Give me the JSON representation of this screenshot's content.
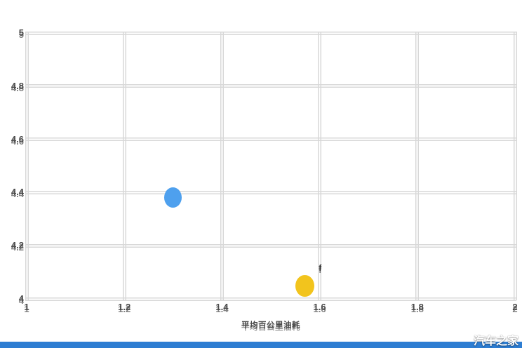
{
  "chart_data": {
    "type": "scatter",
    "xlabel": "平均百公里油耗",
    "ylabel": "",
    "xlim": [
      1,
      2
    ],
    "ylim": [
      4,
      5
    ],
    "x_ticks": [
      {
        "value": 1,
        "label": "1"
      },
      {
        "value": 1.2,
        "label": "1.2"
      },
      {
        "value": 1.4,
        "label": "1.4"
      },
      {
        "value": 1.6,
        "label": "1.6"
      },
      {
        "value": 1.8,
        "label": "1.8"
      },
      {
        "value": 2,
        "label": "2"
      }
    ],
    "y_ticks": [
      {
        "value": 5,
        "label": "5"
      },
      {
        "value": 4.8,
        "label": "4.8"
      },
      {
        "value": 4.6,
        "label": "4.6"
      },
      {
        "value": 4.4,
        "label": "4.4"
      },
      {
        "value": 4.2,
        "label": "4.2"
      },
      {
        "value": 4,
        "label": "4"
      }
    ],
    "grid": true,
    "legend": "none",
    "points": [
      {
        "name": "blue-point",
        "x": 1.3,
        "y": 4.38,
        "color": "#4ea0ee",
        "diameter": 25
      },
      {
        "name": "yellow-point",
        "x": 1.57,
        "y": 4.05,
        "color": "#f2c41d",
        "diameter": 27
      }
    ],
    "annotation": {
      "text": "f",
      "x": 1.601,
      "y": 4.115
    }
  },
  "watermark": {
    "text": "汽车之家"
  },
  "colors": {
    "grid": "#d8d8d8",
    "tick_text": "#4a4a4a",
    "bottom_bar": "#2d7dd2",
    "watermark_text": "#ffffff",
    "background": "#ffffff"
  }
}
